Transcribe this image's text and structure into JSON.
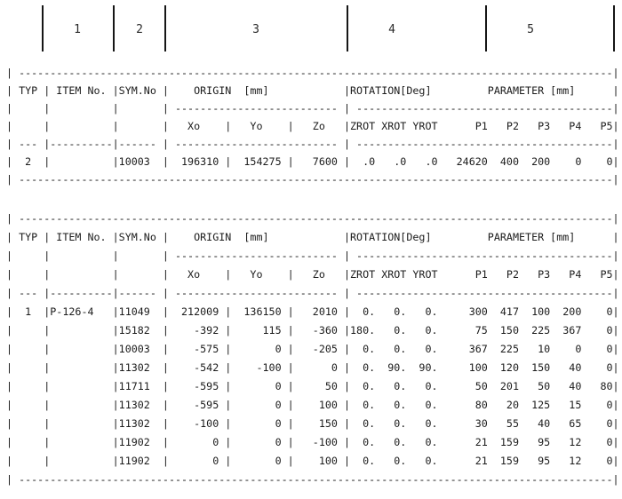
{
  "ruler": {
    "labels": [
      "1",
      "2",
      "3",
      "4",
      "5"
    ]
  },
  "columns": {
    "typ": "TYP",
    "item": "ITEM No.",
    "sym": "SYM.No",
    "origin": "ORIGIN  [mm]",
    "rotation": "ROTATION[Deg]",
    "parameter": "PARAMETER [mm]",
    "xo": "Xo",
    "yo": "Yo",
    "zo": "Zo",
    "zrot": "ZROT",
    "xrot": "XROT",
    "yrot": "YROT",
    "p1": "P1",
    "p2": "P2",
    "p3": "P3",
    "p4": "P4",
    "p5": "P5"
  },
  "table1": {
    "rows": [
      {
        "typ": "2",
        "item": "",
        "sym": "10003",
        "xo": "196310",
        "yo": "154275",
        "zo": "7600",
        "zrot": ".0",
        "xrot": ".0",
        "yrot": ".0",
        "p1": "24620",
        "p2": "400",
        "p3": "200",
        "p4": "0",
        "p5": "0"
      }
    ]
  },
  "table2": {
    "rows": [
      {
        "typ": "1",
        "item": "P-126-4",
        "sym": "11049",
        "xo": "212009",
        "yo": "136150",
        "zo": "2010",
        "zrot": "0.",
        "xrot": "0.",
        "yrot": "0.",
        "p1": "300",
        "p2": "417",
        "p3": "100",
        "p4": "200",
        "p5": "0"
      },
      {
        "typ": "",
        "item": "",
        "sym": "15182",
        "xo": "-392",
        "yo": "115",
        "zo": "-360",
        "zrot": "180.",
        "xrot": "0.",
        "yrot": "0.",
        "p1": "75",
        "p2": "150",
        "p3": "225",
        "p4": "367",
        "p5": "0"
      },
      {
        "typ": "",
        "item": "",
        "sym": "10003",
        "xo": "-575",
        "yo": "0",
        "zo": "-205",
        "zrot": "0.",
        "xrot": "0.",
        "yrot": "0.",
        "p1": "367",
        "p2": "225",
        "p3": "10",
        "p4": "0",
        "p5": "0"
      },
      {
        "typ": "",
        "item": "",
        "sym": "11302",
        "xo": "-542",
        "yo": "-100",
        "zo": "0",
        "zrot": "0.",
        "xrot": "90.",
        "yrot": "90.",
        "p1": "100",
        "p2": "120",
        "p3": "150",
        "p4": "40",
        "p5": "0"
      },
      {
        "typ": "",
        "item": "",
        "sym": "11711",
        "xo": "-595",
        "yo": "0",
        "zo": "50",
        "zrot": "0.",
        "xrot": "0.",
        "yrot": "0.",
        "p1": "50",
        "p2": "201",
        "p3": "50",
        "p4": "40",
        "p5": "80"
      },
      {
        "typ": "",
        "item": "",
        "sym": "11302",
        "xo": "-595",
        "yo": "0",
        "zo": "100",
        "zrot": "0.",
        "xrot": "0.",
        "yrot": "0.",
        "p1": "80",
        "p2": "20",
        "p3": "125",
        "p4": "15",
        "p5": "0"
      },
      {
        "typ": "",
        "item": "",
        "sym": "11302",
        "xo": "-100",
        "yo": "0",
        "zo": "150",
        "zrot": "0.",
        "xrot": "0.",
        "yrot": "0.",
        "p1": "30",
        "p2": "55",
        "p3": "40",
        "p4": "65",
        "p5": "0"
      },
      {
        "typ": "",
        "item": "",
        "sym": "11902",
        "xo": "0",
        "yo": "0",
        "zo": "-100",
        "zrot": "0.",
        "xrot": "0.",
        "yrot": "0.",
        "p1": "21",
        "p2": "159",
        "p3": "95",
        "p4": "12",
        "p5": "0"
      },
      {
        "typ": "",
        "item": "",
        "sym": "11902",
        "xo": "0",
        "yo": "0",
        "zo": "100",
        "zrot": "0.",
        "xrot": "0.",
        "yrot": "0.",
        "p1": "21",
        "p2": "159",
        "p3": "95",
        "p4": "12",
        "p5": "0"
      }
    ]
  }
}
